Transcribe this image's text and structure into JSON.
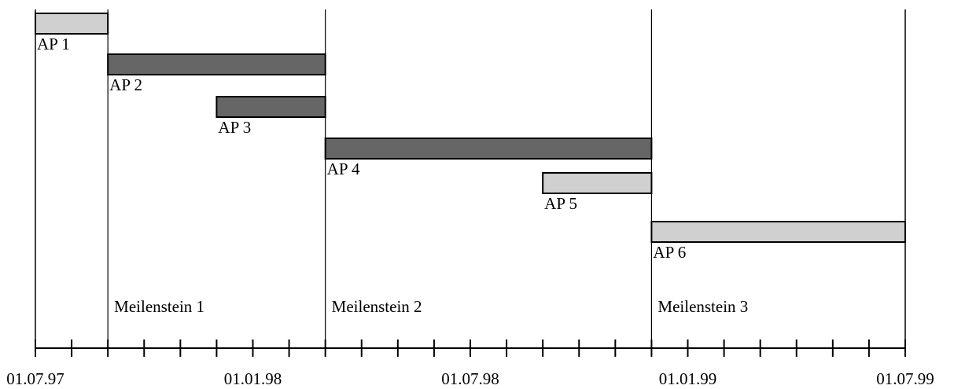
{
  "chart_data": {
    "type": "gantt",
    "time_unit": "month",
    "x_range": [
      "1997-07-01",
      "1999-07-01"
    ],
    "axis": {
      "tick_labels": [
        "01.07.97",
        "01.01.98",
        "01.07.98",
        "01.01.99",
        "01.07.99"
      ],
      "minor_ticks_per_month": 1
    },
    "tasks": [
      {
        "label": "AP 1",
        "start": "1997-07-01",
        "end": "1997-09-01",
        "fill": "#d0d0d0"
      },
      {
        "label": "AP 2",
        "start": "1997-09-01",
        "end": "1998-03-01",
        "fill": "#666666"
      },
      {
        "label": "AP 3",
        "start": "1997-12-01",
        "end": "1998-03-01",
        "fill": "#666666"
      },
      {
        "label": "AP 4",
        "start": "1998-03-01",
        "end": "1998-12-01",
        "fill": "#666666"
      },
      {
        "label": "AP 5",
        "start": "1998-09-01",
        "end": "1998-12-01",
        "fill": "#d0d0d0"
      },
      {
        "label": "AP 6",
        "start": "1998-12-01",
        "end": "1999-07-01",
        "fill": "#d0d0d0"
      }
    ],
    "milestones": [
      {
        "label": "Meilenstein 1",
        "date": "1997-09-01"
      },
      {
        "label": "Meilenstein 2",
        "date": "1998-03-01"
      },
      {
        "label": "Meilenstein 3",
        "date": "1998-12-01"
      }
    ],
    "end_markers": [
      "1997-07-01",
      "1999-07-01"
    ],
    "title": "",
    "xlabel": "",
    "ylabel": "",
    "grid": false,
    "legend": "none"
  }
}
